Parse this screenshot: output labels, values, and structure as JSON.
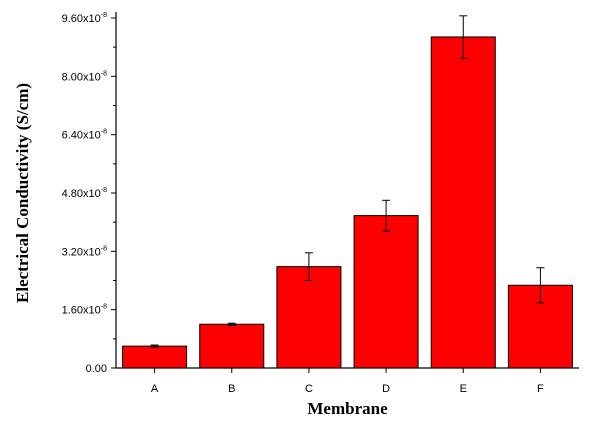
{
  "chart_data": {
    "type": "bar",
    "title": "",
    "xlabel": "Membrane",
    "ylabel": "Electrical Conductivity (S/cm)",
    "categories": [
      "A",
      "B",
      "C",
      "D",
      "E",
      "F"
    ],
    "values": [
      6e-09,
      1.2e-08,
      2.78e-08,
      4.18e-08,
      9.08e-08,
      2.27e-08
    ],
    "errors": [
      3e-10,
      3e-10,
      3.8e-09,
      4.2e-09,
      5.8e-09,
      4.8e-09
    ],
    "ylim": [
      0,
      9.6e-08
    ],
    "y_ticks": [
      0,
      1.6e-08,
      3.2e-08,
      4.8e-08,
      6.4e-08,
      8e-08,
      9.6e-08
    ],
    "y_tick_labels": {
      "mantissas": [
        "0.00",
        "1.60x10",
        "3.20x10",
        "4.80x10",
        "6.40x10",
        "8.00x10",
        "9.60x10"
      ],
      "exponents": [
        "",
        "-8",
        "-8",
        "-8",
        "-8",
        "-8",
        "-8"
      ]
    },
    "grid": false,
    "legend": "none",
    "bar_color": "#ff0000",
    "bar_edge_color": "#000000"
  }
}
